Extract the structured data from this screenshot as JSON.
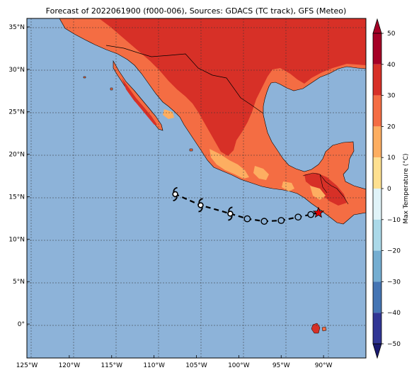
{
  "title": "Forecast of 2022061900 (f000-006), Sources: GDACS (TC track), GFS (Meteo)",
  "map": {
    "lon_range": [
      -125,
      -85
    ],
    "lat_range": [
      -4,
      36
    ],
    "lon_ticks": [
      "125°W",
      "120°W",
      "115°W",
      "110°W",
      "105°W",
      "100°W",
      "95°W",
      "90°W"
    ],
    "lat_ticks": [
      "35°N",
      "30°N",
      "25°N",
      "20°N",
      "15°N",
      "10°N",
      "5°N",
      "0°"
    ],
    "ocean_color": "#8db3d9",
    "gridlines": true
  },
  "colorbar": {
    "label": "Max Temperature (°C)",
    "ticks": [
      "50",
      "40",
      "30",
      "20",
      "10",
      "0",
      "−10",
      "−20",
      "−30",
      "−40",
      "−50"
    ],
    "colors": [
      "#a50026",
      "#d73027",
      "#f46d43",
      "#fdae61",
      "#fee090",
      "#ffffbf",
      "#e0f3f8",
      "#abd9e9",
      "#74add1",
      "#4575b4",
      "#313695",
      "#1a1a70"
    ]
  },
  "track": {
    "points": [
      {
        "lon": -90.6,
        "lat": 13.1,
        "symbol": "current-position-star"
      },
      {
        "lon": -91.5,
        "lat": 12.9,
        "symbol": "circle"
      },
      {
        "lon": -93.0,
        "lat": 12.6,
        "symbol": "circle"
      },
      {
        "lon": -95.0,
        "lat": 12.2,
        "symbol": "circle"
      },
      {
        "lon": -97.0,
        "lat": 12.1,
        "symbol": "circle"
      },
      {
        "lon": -99.0,
        "lat": 12.4,
        "symbol": "circle"
      },
      {
        "lon": -101.0,
        "lat": 13.0,
        "symbol": "storm"
      },
      {
        "lon": -104.5,
        "lat": 14.0,
        "symbol": "storm"
      },
      {
        "lon": -107.5,
        "lat": 15.3,
        "symbol": "storm"
      }
    ]
  }
}
